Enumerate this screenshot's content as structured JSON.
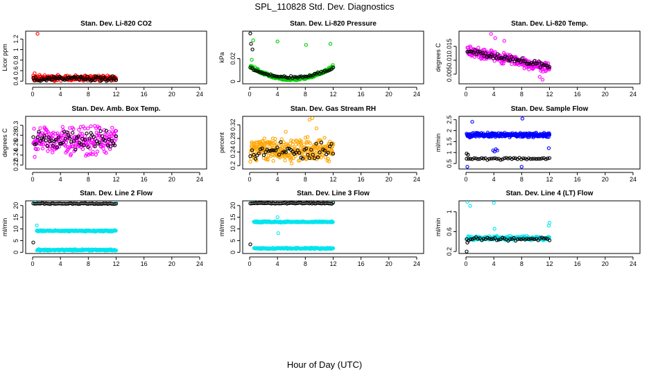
{
  "figure": {
    "title": "SPL_110828  Std. Dev. Diagnostics",
    "xlabel": "Hour of Day (UTC)"
  },
  "colors": {
    "black": "#000000",
    "red": "#ff0000",
    "green": "#00cc00",
    "magenta": "#ff00ff",
    "orange": "#ffa500",
    "blue": "#0000ff",
    "cyan": "#00e5ee"
  },
  "chart_data": [
    {
      "id": "co2",
      "type": "scatter",
      "title": "Stan. Dev. Li-820 CO2",
      "ylabel": "Licor ppm",
      "xlim": [
        -1,
        25
      ],
      "ylim": [
        0.35,
        1.35
      ],
      "xticks": [
        0,
        4,
        8,
        12,
        16,
        20,
        24
      ],
      "yticks": [
        0.4,
        0.6,
        0.8,
        1.0,
        1.2
      ],
      "series": [
        {
          "name": "primary",
          "color": "red",
          "gen": {
            "kind": "band",
            "x0": 0.1,
            "x1": 12,
            "n": 240,
            "mid": 0.46,
            "amp": 0.06,
            "seed": 11
          },
          "extra": [
            [
              0.7,
              1.3
            ],
            [
              0.3,
              0.55
            ],
            [
              1.0,
              0.52
            ]
          ]
        },
        {
          "name": "secondary",
          "color": "black",
          "gen": {
            "kind": "band",
            "x0": 0.1,
            "x1": 12,
            "n": 70,
            "mid": 0.45,
            "amp": 0.06,
            "seed": 12
          },
          "extra": []
        }
      ]
    },
    {
      "id": "pres",
      "type": "scatter",
      "title": "Stan. Dev. Li-820 Pressure",
      "ylabel": "kPa",
      "xlim": [
        -1,
        25
      ],
      "ylim": [
        -0.002,
        0.044
      ],
      "xticks": [
        0,
        4,
        8,
        12,
        16,
        20,
        24
      ],
      "yticks": [
        0.0,
        0.02
      ],
      "series": [
        {
          "name": "primary",
          "color": "green",
          "gen": {
            "kind": "bowl",
            "x0": 0.1,
            "x1": 12,
            "n": 240,
            "ends": 0.012,
            "mid": 0.001,
            "amp": 0.003,
            "seed": 21
          },
          "extra": [
            [
              0.5,
              0.036
            ],
            [
              4.0,
              0.035
            ],
            [
              8.1,
              0.032
            ],
            [
              11.6,
              0.033
            ],
            [
              0.3,
              0.019
            ],
            [
              11.8,
              0.013
            ]
          ]
        },
        {
          "name": "secondary",
          "color": "black",
          "gen": {
            "kind": "bowl",
            "x0": 0.1,
            "x1": 12,
            "n": 50,
            "ends": 0.011,
            "mid": 0.003,
            "amp": 0.002,
            "seed": 22
          },
          "extra": [
            [
              0.1,
              0.042
            ],
            [
              0.2,
              0.033
            ],
            [
              0.4,
              0.028
            ]
          ]
        }
      ]
    },
    {
      "id": "temp",
      "type": "scatter",
      "title": "Stan. Dev. Li-820 Temp.",
      "ylabel": "degrees C",
      "xlim": [
        -1,
        25
      ],
      "ylim": [
        0.0015,
        0.0205
      ],
      "xticks": [
        0,
        4,
        8,
        12,
        16,
        20,
        24
      ],
      "yticks": [
        0.005,
        0.01,
        0.015
      ],
      "series": [
        {
          "name": "primary",
          "color": "magenta",
          "gen": {
            "kind": "trend",
            "x0": 0.2,
            "x1": 12,
            "n": 240,
            "y0": 0.0135,
            "y1": 0.007,
            "amp": 0.0022,
            "seed": 31
          },
          "extra": [
            [
              3.6,
              0.0195
            ],
            [
              4.2,
              0.018
            ],
            [
              11.0,
              0.003
            ],
            [
              10.6,
              0.004
            ],
            [
              5.5,
              0.017
            ]
          ]
        },
        {
          "name": "secondary",
          "color": "black",
          "gen": {
            "kind": "trend",
            "x0": 0.2,
            "x1": 12,
            "n": 55,
            "y0": 0.0132,
            "y1": 0.008,
            "amp": 0.0012,
            "seed": 32
          },
          "extra": []
        }
      ]
    },
    {
      "id": "box",
      "type": "scatter",
      "title": "Stan. Dev. Amb. Box Temp.",
      "ylabel": "degrees C",
      "xlim": [
        -1,
        25
      ],
      "ylim": [
        0.212,
        0.318
      ],
      "xticks": [
        0,
        4,
        8,
        12,
        16,
        20,
        24
      ],
      "yticks": [
        0.22,
        0.24,
        0.26,
        0.28,
        0.3
      ],
      "series": [
        {
          "name": "primary",
          "color": "magenta",
          "gen": {
            "kind": "band",
            "x0": 0.1,
            "x1": 12,
            "n": 230,
            "mid": 0.27,
            "amp": 0.035,
            "seed": 41
          },
          "extra": []
        },
        {
          "name": "secondary",
          "color": "black",
          "gen": {
            "kind": "band",
            "x0": 0.1,
            "x1": 12,
            "n": 60,
            "mid": 0.27,
            "amp": 0.025,
            "seed": 42
          },
          "extra": []
        }
      ]
    },
    {
      "id": "rh",
      "type": "scatter",
      "title": "Stan. Dev. Gas Stream RH",
      "ylabel": "percent",
      "xlim": [
        -1,
        25
      ],
      "ylim": [
        0.19,
        0.345
      ],
      "xticks": [
        0,
        4,
        8,
        12,
        16,
        20,
        24
      ],
      "yticks": [
        0.2,
        0.24,
        0.28,
        0.32
      ],
      "series": [
        {
          "name": "primary",
          "color": "orange",
          "gen": {
            "kind": "band",
            "x0": 0.1,
            "x1": 12,
            "n": 300,
            "mid": 0.245,
            "amp": 0.04,
            "seed": 51
          },
          "extra": [
            [
              9.0,
              0.34
            ],
            [
              8.6,
              0.335
            ],
            [
              5.2,
              0.3
            ],
            [
              9.6,
              0.31
            ]
          ]
        },
        {
          "name": "secondary",
          "color": "black",
          "gen": {
            "kind": "band",
            "x0": 0.1,
            "x1": 12,
            "n": 50,
            "mid": 0.24,
            "amp": 0.03,
            "seed": 52
          },
          "extra": []
        }
      ]
    },
    {
      "id": "flow",
      "type": "scatter",
      "title": "Stan. Dev. Sample Flow",
      "ylabel": "ml/min",
      "xlim": [
        -1,
        25
      ],
      "ylim": [
        0.25,
        2.65
      ],
      "xticks": [
        0,
        4,
        8,
        12,
        16,
        20,
        24
      ],
      "yticks": [
        0.5,
        1.0,
        1.5,
        2.0,
        2.5
      ],
      "series": [
        {
          "name": "primary",
          "color": "blue",
          "gen": {
            "kind": "band",
            "x0": 0.1,
            "x1": 12,
            "n": 280,
            "mid": 1.8,
            "amp": 0.12,
            "seed": 61
          },
          "extra": [
            [
              0.9,
              2.4
            ],
            [
              8.1,
              2.55
            ],
            [
              0.2,
              0.35
            ],
            [
              8.0,
              0.35
            ],
            [
              11.9,
              1.2
            ],
            [
              3.9,
              1.1
            ],
            [
              4.1,
              1.05
            ],
            [
              4.3,
              1.15
            ],
            [
              4.5,
              1.1
            ]
          ]
        },
        {
          "name": "secondary",
          "color": "black",
          "gen": {
            "kind": "band",
            "x0": 0.1,
            "x1": 12,
            "n": 45,
            "mid": 0.72,
            "amp": 0.06,
            "seed": 62
          },
          "extra": [
            [
              0.1,
              0.95
            ],
            [
              0.3,
              0.9
            ]
          ]
        }
      ]
    },
    {
      "id": "line2",
      "type": "scatter",
      "title": "Stan. Dev. Line 2 Flow",
      "ylabel": "ml/min",
      "xlim": [
        -1,
        25
      ],
      "ylim": [
        -0.5,
        22
      ],
      "xticks": [
        0,
        4,
        8,
        12,
        16,
        20,
        24
      ],
      "yticks": [
        0,
        5,
        10,
        15,
        20
      ],
      "series": [
        {
          "name": "primary",
          "color": "cyan",
          "gen": {
            "kind": "bands",
            "x0": 0.6,
            "x1": 12,
            "n": 320,
            "levels": [
              9.2,
              1.0
            ],
            "amp": 0.4,
            "seed": 71
          },
          "extra": [
            [
              0.4,
              21.8
            ],
            [
              0.6,
              11.5
            ],
            [
              12.0,
              21.6
            ],
            [
              0.3,
              21.5
            ]
          ]
        },
        {
          "name": "secondary",
          "color": "black",
          "gen": {
            "kind": "band",
            "x0": 0.1,
            "x1": 12,
            "n": 60,
            "mid": 20.8,
            "amp": 0.3,
            "seed": 72
          },
          "extra": [
            [
              0.1,
              4.2
            ]
          ]
        }
      ]
    },
    {
      "id": "line3",
      "type": "scatter",
      "title": "Stan. Dev. Line 3 Flow",
      "ylabel": "ml/min",
      "xlim": [
        -1,
        25
      ],
      "ylim": [
        -0.5,
        22
      ],
      "xticks": [
        0,
        4,
        8,
        12,
        16,
        20,
        24
      ],
      "yticks": [
        0,
        5,
        10,
        15,
        20
      ],
      "series": [
        {
          "name": "primary",
          "color": "cyan",
          "gen": {
            "kind": "bands",
            "x0": 0.6,
            "x1": 12,
            "n": 320,
            "levels": [
              13.0,
              1.7
            ],
            "amp": 0.35,
            "seed": 81
          },
          "extra": [
            [
              0.2,
              21.9
            ],
            [
              4.0,
              15.0
            ],
            [
              4.1,
              8.2
            ],
            [
              12.0,
              21.5
            ]
          ]
        },
        {
          "name": "secondary",
          "color": "black",
          "gen": {
            "kind": "band",
            "x0": 0.1,
            "x1": 12,
            "n": 60,
            "mid": 21.0,
            "amp": 0.3,
            "seed": 82
          },
          "extra": [
            [
              0.1,
              3.4
            ]
          ]
        }
      ]
    },
    {
      "id": "line4",
      "type": "scatter",
      "title": "Stan. Dev. Line 4 (LT) Flow",
      "ylabel": "ml/min",
      "xlim": [
        -1,
        25
      ],
      "ylim": [
        0.16,
        1.22
      ],
      "xticks": [
        0,
        4,
        8,
        12,
        16,
        20,
        24
      ],
      "yticks": [
        0.2,
        0.6,
        1.0
      ],
      "series": [
        {
          "name": "primary",
          "color": "cyan",
          "gen": {
            "kind": "band",
            "x0": 0.2,
            "x1": 12,
            "n": 200,
            "mid": 0.47,
            "amp": 0.05,
            "seed": 91
          },
          "extra": [
            [
              0.2,
              1.2
            ],
            [
              4.0,
              1.18
            ],
            [
              0.6,
              1.12
            ],
            [
              12.0,
              0.78
            ],
            [
              11.9,
              0.72
            ],
            [
              4.1,
              0.66
            ]
          ]
        },
        {
          "name": "secondary",
          "color": "black",
          "gen": {
            "kind": "band",
            "x0": 0.1,
            "x1": 12,
            "n": 45,
            "mid": 0.45,
            "amp": 0.04,
            "seed": 92
          },
          "extra": [
            [
              0.1,
              0.2
            ],
            [
              0.2,
              0.38
            ]
          ]
        }
      ]
    }
  ]
}
